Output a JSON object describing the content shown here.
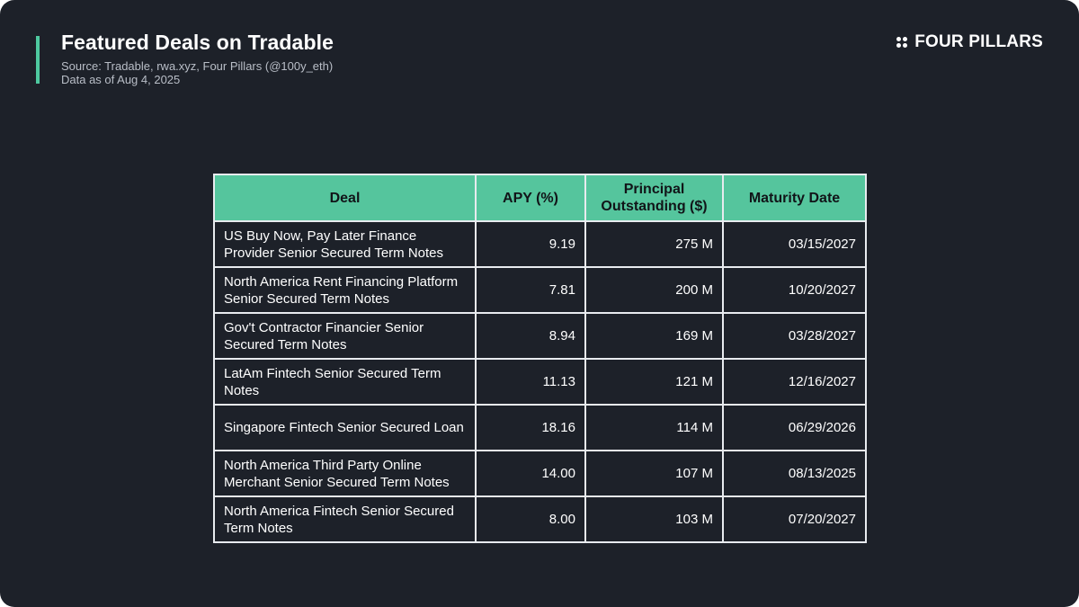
{
  "header": {
    "title": "Featured Deals on Tradable",
    "source": "Source: Tradable, rwa.xyz, Four Pillars (@100y_eth)",
    "as_of": "Data as of Aug 4, 2025"
  },
  "brand": {
    "name": "FOUR PILLARS",
    "icon": "four-dots-icon"
  },
  "colors": {
    "background": "#1d2129",
    "accent": "#4ec9a0",
    "header_fill": "#55c59d",
    "grid": "#e8ebef"
  },
  "chart_data": {
    "type": "table",
    "columns": [
      "Deal",
      "APY (%)",
      "Principal Outstanding ($)",
      "Maturity Date"
    ],
    "rows": [
      [
        "US Buy Now, Pay Later Finance Provider Senior Secured Term Notes",
        "9.19",
        "275 M",
        "03/15/2027"
      ],
      [
        "North America Rent Financing Platform Senior Secured Term Notes",
        "7.81",
        "200 M",
        "10/20/2027"
      ],
      [
        "Gov't Contractor Financier Senior Secured Term Notes",
        "8.94",
        "169 M",
        "03/28/2027"
      ],
      [
        "LatAm Fintech Senior Secured Term Notes",
        "11.13",
        "121 M",
        "12/16/2027"
      ],
      [
        "Singapore Fintech Senior Secured Loan",
        "18.16",
        "114 M",
        "06/29/2026"
      ],
      [
        "North America Third Party Online Merchant Senior Secured Term Notes",
        "14.00",
        "107 M",
        "08/13/2025"
      ],
      [
        "North America Fintech Senior Secured Term Notes",
        "8.00",
        "103 M",
        "07/20/2027"
      ]
    ]
  }
}
